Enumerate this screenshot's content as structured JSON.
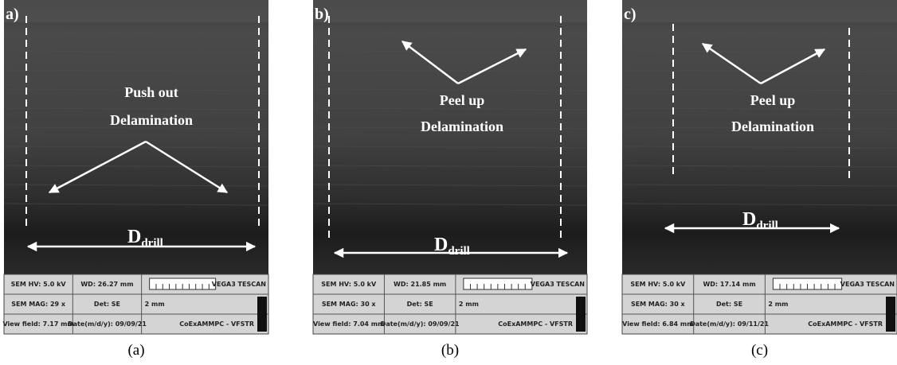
{
  "panels": [
    {
      "label": "a)",
      "annotation": [
        "Push out",
        "Delamination"
      ],
      "dimension": {
        "main": "D",
        "sub": "drill"
      },
      "info": [
        [
          "SEM HV: 5.0 kV",
          "WD: 26.27 mm",
          "VEGA3 TESCAN"
        ],
        [
          "SEM MAG: 29 x",
          "Det: SE",
          "2 mm"
        ],
        [
          "View field: 7.17 mm",
          "Date(m/d/y): 09/09/21",
          "CoExAMMPC - VFSTR"
        ]
      ],
      "caption": "(a)"
    },
    {
      "label": "b)",
      "annotation": [
        "Peel up",
        "Delamination"
      ],
      "dimension": {
        "main": "D",
        "sub": "drill"
      },
      "info": [
        [
          "SEM HV: 5.0 kV",
          "WD: 21.85 mm",
          "VEGA3 TESCAN"
        ],
        [
          "SEM MAG: 30 x",
          "Det: SE",
          "2 mm"
        ],
        [
          "View field: 7.04 mm",
          "Date(m/d/y): 09/09/21",
          "CoExAMMPC - VFSTR"
        ]
      ],
      "caption": "(b)"
    },
    {
      "label": "c)",
      "annotation": [
        "Peel up",
        "Delamination"
      ],
      "dimension": {
        "main": "D",
        "sub": "drill"
      },
      "info": [
        [
          "SEM HV: 5.0 kV",
          "WD: 17.14 mm",
          "VEGA3 TESCAN"
        ],
        [
          "SEM MAG: 30 x",
          "Det: SE",
          "2 mm"
        ],
        [
          "View field: 6.84 mm",
          "Date(m/d/y): 09/11/21",
          "CoExAMMPC - VFSTR"
        ]
      ],
      "caption": "(c)"
    }
  ]
}
